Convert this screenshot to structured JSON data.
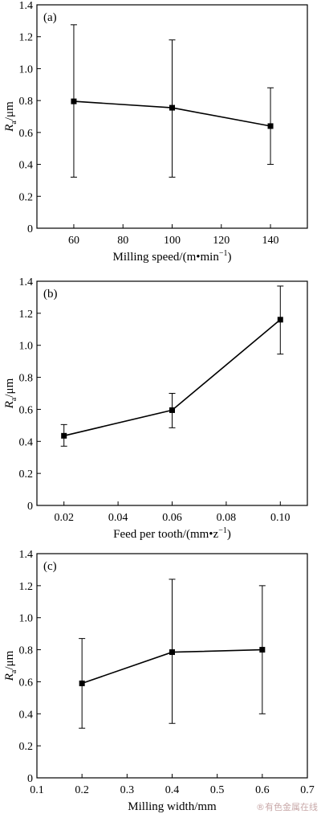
{
  "chart_data": [
    {
      "type": "line",
      "panel_label": "(a)",
      "xlabel": "Milling speed/(m•min",
      "xlabel_sup": "−1",
      "xlabel_suffix": ")",
      "ylabel_main": "R",
      "ylabel_sub": "a",
      "ylabel_unit": "/μm",
      "xlim": [
        45,
        155
      ],
      "ylim": [
        0,
        1.4
      ],
      "xticks": [
        60,
        80,
        100,
        120,
        140
      ],
      "xtick_labels": [
        "60",
        "80",
        "100",
        "120",
        "140"
      ],
      "yticks": [
        0,
        0.2,
        0.4,
        0.6,
        0.8,
        1.0,
        1.2,
        1.4
      ],
      "ytick_labels": [
        "0",
        "0.2",
        "0.4",
        "0.6",
        "0.8",
        "1.0",
        "1.2",
        "1.4"
      ],
      "x": [
        60,
        100,
        140
      ],
      "y": [
        0.795,
        0.755,
        0.64
      ],
      "err_low": [
        0.32,
        0.32,
        0.4
      ],
      "err_high": [
        1.275,
        1.18,
        0.88
      ]
    },
    {
      "type": "line",
      "panel_label": "(b)",
      "xlabel": "Feed per tooth/(mm•z",
      "xlabel_sup": "−1",
      "xlabel_suffix": ")",
      "ylabel_main": "R",
      "ylabel_sub": "a",
      "ylabel_unit": "/μm",
      "xlim": [
        0.01,
        0.11
      ],
      "ylim": [
        0,
        1.4
      ],
      "xticks": [
        0.02,
        0.04,
        0.06,
        0.08,
        0.1
      ],
      "xtick_labels": [
        "0.02",
        "0.04",
        "0.06",
        "0.08",
        "0.10"
      ],
      "yticks": [
        0,
        0.2,
        0.4,
        0.6,
        0.8,
        1.0,
        1.2,
        1.4
      ],
      "ytick_labels": [
        "0",
        "0.2",
        "0.4",
        "0.6",
        "0.8",
        "1.0",
        "1.2",
        "1.4"
      ],
      "x": [
        0.02,
        0.06,
        0.1
      ],
      "y": [
        0.435,
        0.595,
        1.16
      ],
      "err_low": [
        0.37,
        0.485,
        0.945
      ],
      "err_high": [
        0.505,
        0.7,
        1.37
      ]
    },
    {
      "type": "line",
      "panel_label": "(c)",
      "xlabel": "Milling width/mm",
      "xlabel_sup": "",
      "xlabel_suffix": "",
      "ylabel_main": "R",
      "ylabel_sub": "a",
      "ylabel_unit": "/μm",
      "xlim": [
        0.1,
        0.7
      ],
      "ylim": [
        0,
        1.4
      ],
      "xticks": [
        0.1,
        0.2,
        0.3,
        0.4,
        0.5,
        0.6,
        0.7
      ],
      "xtick_labels": [
        "0.1",
        "0.2",
        "0.3",
        "0.4",
        "0.5",
        "0.6",
        "0.7"
      ],
      "yticks": [
        0,
        0.2,
        0.4,
        0.6,
        0.8,
        1.0,
        1.2,
        1.4
      ],
      "ytick_labels": [
        "0",
        "0.2",
        "0.4",
        "0.6",
        "0.8",
        "1.0",
        "1.2",
        "1.4"
      ],
      "x": [
        0.2,
        0.4,
        0.6
      ],
      "y": [
        0.59,
        0.785,
        0.8
      ],
      "err_low": [
        0.31,
        0.34,
        0.4
      ],
      "err_high": [
        0.87,
        1.24,
        1.2
      ]
    }
  ],
  "watermark": "®有色金属在线"
}
